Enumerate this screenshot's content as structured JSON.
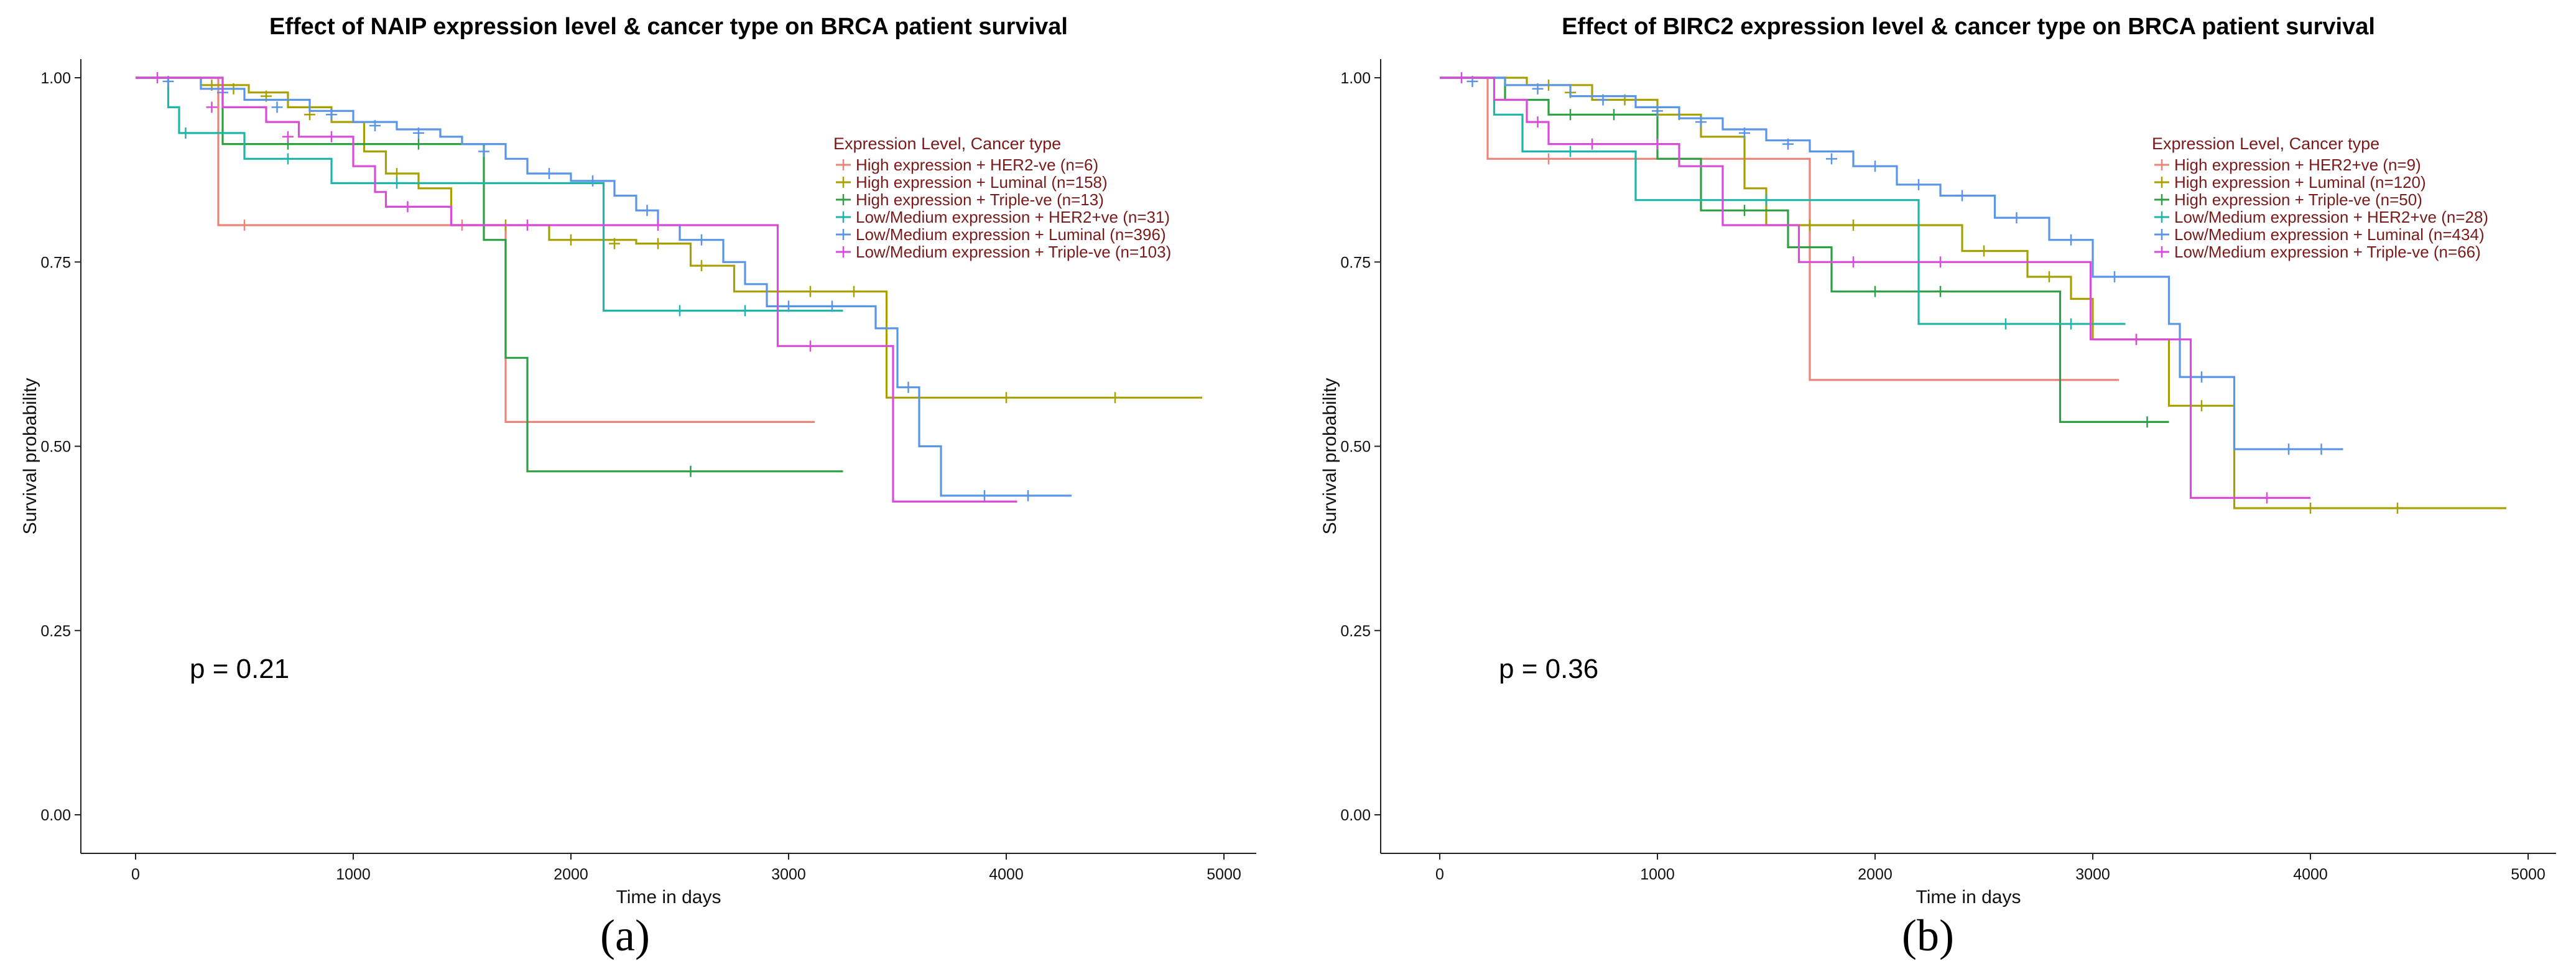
{
  "chart_data": [
    {
      "type": "line",
      "panel_label": "(a)",
      "title": "Effect of NAIP expression level & cancer type on BRCA patient survival",
      "xlabel": "Time in days",
      "ylabel": "Survival probability",
      "xlim": [
        0,
        5000
      ],
      "ylim": [
        0,
        1
      ],
      "x_ticks": [
        "0",
        "1000",
        "2000",
        "3000",
        "4000",
        "5000"
      ],
      "y_ticks": [
        "0.00",
        "0.25",
        "0.50",
        "0.75",
        "1.00"
      ],
      "p_value": "p = 0.21",
      "legend_title": "Expression Level, Cancer type",
      "legend_position": "top-right",
      "series": [
        {
          "name": "High expression + HER2-ve (n=6)",
          "color": "#e8867b",
          "steps": [
            [
              0,
              1.0
            ],
            [
              380,
              0.8
            ],
            [
              1700,
              0.533
            ],
            [
              3120,
              0.533
            ]
          ],
          "censors": [
            [
              500,
              0.8
            ],
            [
              1500,
              0.8
            ]
          ]
        },
        {
          "name": "High expression + Luminal (n=158)",
          "color": "#a8a000",
          "steps": [
            [
              0,
              1.0
            ],
            [
              300,
              0.99
            ],
            [
              520,
              0.98
            ],
            [
              700,
              0.96
            ],
            [
              900,
              0.94
            ],
            [
              1050,
              0.9
            ],
            [
              1150,
              0.87
            ],
            [
              1300,
              0.85
            ],
            [
              1450,
              0.8
            ],
            [
              1800,
              0.8
            ],
            [
              1900,
              0.78
            ],
            [
              2300,
              0.775
            ],
            [
              2550,
              0.745
            ],
            [
              2750,
              0.71
            ],
            [
              3450,
              0.566
            ],
            [
              4900,
              0.566
            ]
          ],
          "censors": [
            [
              350,
              0.99
            ],
            [
              450,
              0.985
            ],
            [
              600,
              0.975
            ],
            [
              800,
              0.95
            ],
            [
              1200,
              0.87
            ],
            [
              1700,
              0.8
            ],
            [
              2000,
              0.78
            ],
            [
              2200,
              0.775
            ],
            [
              2400,
              0.775
            ],
            [
              2600,
              0.745
            ],
            [
              2900,
              0.71
            ],
            [
              3100,
              0.71
            ],
            [
              3300,
              0.71
            ],
            [
              4000,
              0.566
            ],
            [
              4500,
              0.566
            ]
          ]
        },
        {
          "name": "High expression + Triple-ve (n=13)",
          "color": "#2ea043",
          "steps": [
            [
              0,
              1.0
            ],
            [
              400,
              0.91
            ],
            [
              1600,
              0.78
            ],
            [
              1700,
              0.62
            ],
            [
              1800,
              0.466
            ],
            [
              3250,
              0.466
            ]
          ],
          "censors": [
            [
              700,
              0.91
            ],
            [
              1300,
              0.91
            ],
            [
              2550,
              0.466
            ]
          ]
        },
        {
          "name": "Low/Medium expression + HER2+ve (n=31)",
          "color": "#1fb5a8",
          "steps": [
            [
              0,
              1.0
            ],
            [
              150,
              0.96
            ],
            [
              200,
              0.925
            ],
            [
              500,
              0.89
            ],
            [
              900,
              0.857
            ],
            [
              1600,
              0.857
            ],
            [
              2150,
              0.684
            ],
            [
              3250,
              0.684
            ]
          ],
          "censors": [
            [
              230,
              0.925
            ],
            [
              700,
              0.89
            ],
            [
              1200,
              0.857
            ],
            [
              2500,
              0.684
            ],
            [
              2800,
              0.684
            ]
          ]
        },
        {
          "name": "Low/Medium expression + Luminal (n=396)",
          "color": "#5b95e6",
          "steps": [
            [
              0,
              1.0
            ],
            [
              300,
              0.985
            ],
            [
              500,
              0.97
            ],
            [
              800,
              0.955
            ],
            [
              1000,
              0.94
            ],
            [
              1200,
              0.93
            ],
            [
              1400,
              0.92
            ],
            [
              1500,
              0.91
            ],
            [
              1700,
              0.89
            ],
            [
              1800,
              0.87
            ],
            [
              2000,
              0.86
            ],
            [
              2200,
              0.84
            ],
            [
              2300,
              0.82
            ],
            [
              2400,
              0.8
            ],
            [
              2500,
              0.78
            ],
            [
              2700,
              0.75
            ],
            [
              2800,
              0.72
            ],
            [
              2900,
              0.69
            ],
            [
              3400,
              0.66
            ],
            [
              3500,
              0.58
            ],
            [
              3600,
              0.5
            ],
            [
              3700,
              0.433
            ],
            [
              4300,
              0.433
            ]
          ],
          "censors": [
            [
              150,
              0.995
            ],
            [
              400,
              0.98
            ],
            [
              650,
              0.96
            ],
            [
              900,
              0.95
            ],
            [
              1100,
              0.935
            ],
            [
              1300,
              0.925
            ],
            [
              1600,
              0.9
            ],
            [
              1900,
              0.87
            ],
            [
              2100,
              0.86
            ],
            [
              2350,
              0.82
            ],
            [
              2600,
              0.78
            ],
            [
              3000,
              0.69
            ],
            [
              3200,
              0.69
            ],
            [
              3550,
              0.58
            ],
            [
              3900,
              0.433
            ],
            [
              4100,
              0.433
            ]
          ]
        },
        {
          "name": "Low/Medium expression + Triple-ve (n=103)",
          "color": "#d94bd9",
          "steps": [
            [
              0,
              1.0
            ],
            [
              400,
              0.96
            ],
            [
              600,
              0.94
            ],
            [
              750,
              0.92
            ],
            [
              1000,
              0.88
            ],
            [
              1100,
              0.845
            ],
            [
              1150,
              0.825
            ],
            [
              1450,
              0.8
            ],
            [
              2850,
              0.8
            ],
            [
              2950,
              0.636
            ],
            [
              3450,
              0.636
            ],
            [
              3480,
              0.425
            ],
            [
              4050,
              0.425
            ]
          ],
          "censors": [
            [
              100,
              1.0
            ],
            [
              350,
              0.96
            ],
            [
              700,
              0.92
            ],
            [
              900,
              0.92
            ],
            [
              1250,
              0.825
            ],
            [
              1800,
              0.8
            ],
            [
              2400,
              0.8
            ],
            [
              3100,
              0.636
            ]
          ]
        }
      ]
    },
    {
      "type": "line",
      "panel_label": "(b)",
      "title": "Effect of BIRC2 expression level & cancer type on BRCA patient survival",
      "xlabel": "Time in days",
      "ylabel": "Survival probability",
      "xlim": [
        0,
        5000
      ],
      "ylim": [
        0,
        1
      ],
      "x_ticks": [
        "0",
        "1000",
        "2000",
        "3000",
        "4000",
        "5000"
      ],
      "y_ticks": [
        "0.00",
        "0.25",
        "0.50",
        "0.75",
        "1.00"
      ],
      "p_value": "p = 0.36",
      "legend_title": "Expression Level, Cancer type",
      "legend_position": "top-right",
      "series": [
        {
          "name": "High expression + HER2+ve (n=9)",
          "color": "#e8867b",
          "steps": [
            [
              0,
              1.0
            ],
            [
              220,
              0.89
            ],
            [
              1700,
              0.59
            ],
            [
              3120,
              0.59
            ]
          ],
          "censors": [
            [
              500,
              0.89
            ],
            [
              900,
              0.89
            ]
          ]
        },
        {
          "name": "High expression + Luminal (n=120)",
          "color": "#a8a000",
          "steps": [
            [
              0,
              1.0
            ],
            [
              400,
              0.99
            ],
            [
              700,
              0.97
            ],
            [
              1000,
              0.95
            ],
            [
              1200,
              0.92
            ],
            [
              1400,
              0.85
            ],
            [
              1500,
              0.8
            ],
            [
              2200,
              0.8
            ],
            [
              2400,
              0.765
            ],
            [
              2700,
              0.73
            ],
            [
              2900,
              0.7
            ],
            [
              3000,
              0.645
            ],
            [
              3350,
              0.555
            ],
            [
              3600,
              0.555
            ],
            [
              3650,
              0.416
            ],
            [
              4900,
              0.416
            ]
          ],
          "censors": [
            [
              500,
              0.99
            ],
            [
              600,
              0.98
            ],
            [
              850,
              0.97
            ],
            [
              1100,
              0.95
            ],
            [
              1700,
              0.8
            ],
            [
              1900,
              0.8
            ],
            [
              2500,
              0.765
            ],
            [
              2800,
              0.73
            ],
            [
              3200,
              0.645
            ],
            [
              3500,
              0.555
            ],
            [
              4000,
              0.416
            ],
            [
              4400,
              0.416
            ]
          ]
        },
        {
          "name": "High expression + Triple-ve (n=50)",
          "color": "#2ea043",
          "steps": [
            [
              0,
              1.0
            ],
            [
              300,
              0.97
            ],
            [
              500,
              0.95
            ],
            [
              1000,
              0.89
            ],
            [
              1200,
              0.82
            ],
            [
              1600,
              0.77
            ],
            [
              1800,
              0.71
            ],
            [
              2800,
              0.71
            ],
            [
              2850,
              0.533
            ],
            [
              3350,
              0.533
            ]
          ],
          "censors": [
            [
              600,
              0.95
            ],
            [
              800,
              0.95
            ],
            [
              1400,
              0.82
            ],
            [
              2000,
              0.71
            ],
            [
              2300,
              0.71
            ],
            [
              3250,
              0.533
            ]
          ]
        },
        {
          "name": "Low/Medium expression + HER2+ve (n=28)",
          "color": "#1fb5a8",
          "steps": [
            [
              0,
              1.0
            ],
            [
              250,
              0.95
            ],
            [
              380,
              0.9
            ],
            [
              900,
              0.834
            ],
            [
              2150,
              0.834
            ],
            [
              2200,
              0.666
            ],
            [
              3150,
              0.666
            ]
          ],
          "censors": [
            [
              600,
              0.9
            ],
            [
              1500,
              0.834
            ],
            [
              2600,
              0.666
            ],
            [
              2900,
              0.666
            ]
          ]
        },
        {
          "name": "Low/Medium expression + Luminal (n=434)",
          "color": "#5b95e6",
          "steps": [
            [
              0,
              1.0
            ],
            [
              300,
              0.99
            ],
            [
              600,
              0.975
            ],
            [
              900,
              0.96
            ],
            [
              1100,
              0.945
            ],
            [
              1300,
              0.93
            ],
            [
              1500,
              0.915
            ],
            [
              1700,
              0.9
            ],
            [
              1900,
              0.88
            ],
            [
              2100,
              0.855
            ],
            [
              2300,
              0.84
            ],
            [
              2550,
              0.81
            ],
            [
              2800,
              0.78
            ],
            [
              3000,
              0.73
            ],
            [
              3300,
              0.73
            ],
            [
              3350,
              0.666
            ],
            [
              3400,
              0.594
            ],
            [
              3650,
              0.496
            ],
            [
              4150,
              0.496
            ]
          ],
          "censors": [
            [
              150,
              0.995
            ],
            [
              450,
              0.985
            ],
            [
              750,
              0.97
            ],
            [
              1000,
              0.955
            ],
            [
              1200,
              0.94
            ],
            [
              1400,
              0.925
            ],
            [
              1600,
              0.91
            ],
            [
              1800,
              0.89
            ],
            [
              2000,
              0.88
            ],
            [
              2200,
              0.855
            ],
            [
              2400,
              0.84
            ],
            [
              2650,
              0.81
            ],
            [
              2900,
              0.78
            ],
            [
              3100,
              0.73
            ],
            [
              3500,
              0.594
            ],
            [
              3900,
              0.496
            ],
            [
              4050,
              0.496
            ]
          ]
        },
        {
          "name": "Low/Medium expression + Triple-ve (n=66)",
          "color": "#d94bd9",
          "steps": [
            [
              0,
              1.0
            ],
            [
              250,
              0.97
            ],
            [
              400,
              0.94
            ],
            [
              500,
              0.91
            ],
            [
              1100,
              0.88
            ],
            [
              1300,
              0.8
            ],
            [
              1650,
              0.75
            ],
            [
              2950,
              0.75
            ],
            [
              2990,
              0.645
            ],
            [
              3400,
              0.645
            ],
            [
              3450,
              0.43
            ],
            [
              4000,
              0.43
            ]
          ],
          "censors": [
            [
              100,
              1.0
            ],
            [
              450,
              0.94
            ],
            [
              700,
              0.91
            ],
            [
              1000,
              0.91
            ],
            [
              1900,
              0.75
            ],
            [
              2300,
              0.75
            ],
            [
              3200,
              0.645
            ],
            [
              3800,
              0.43
            ]
          ]
        }
      ]
    }
  ]
}
